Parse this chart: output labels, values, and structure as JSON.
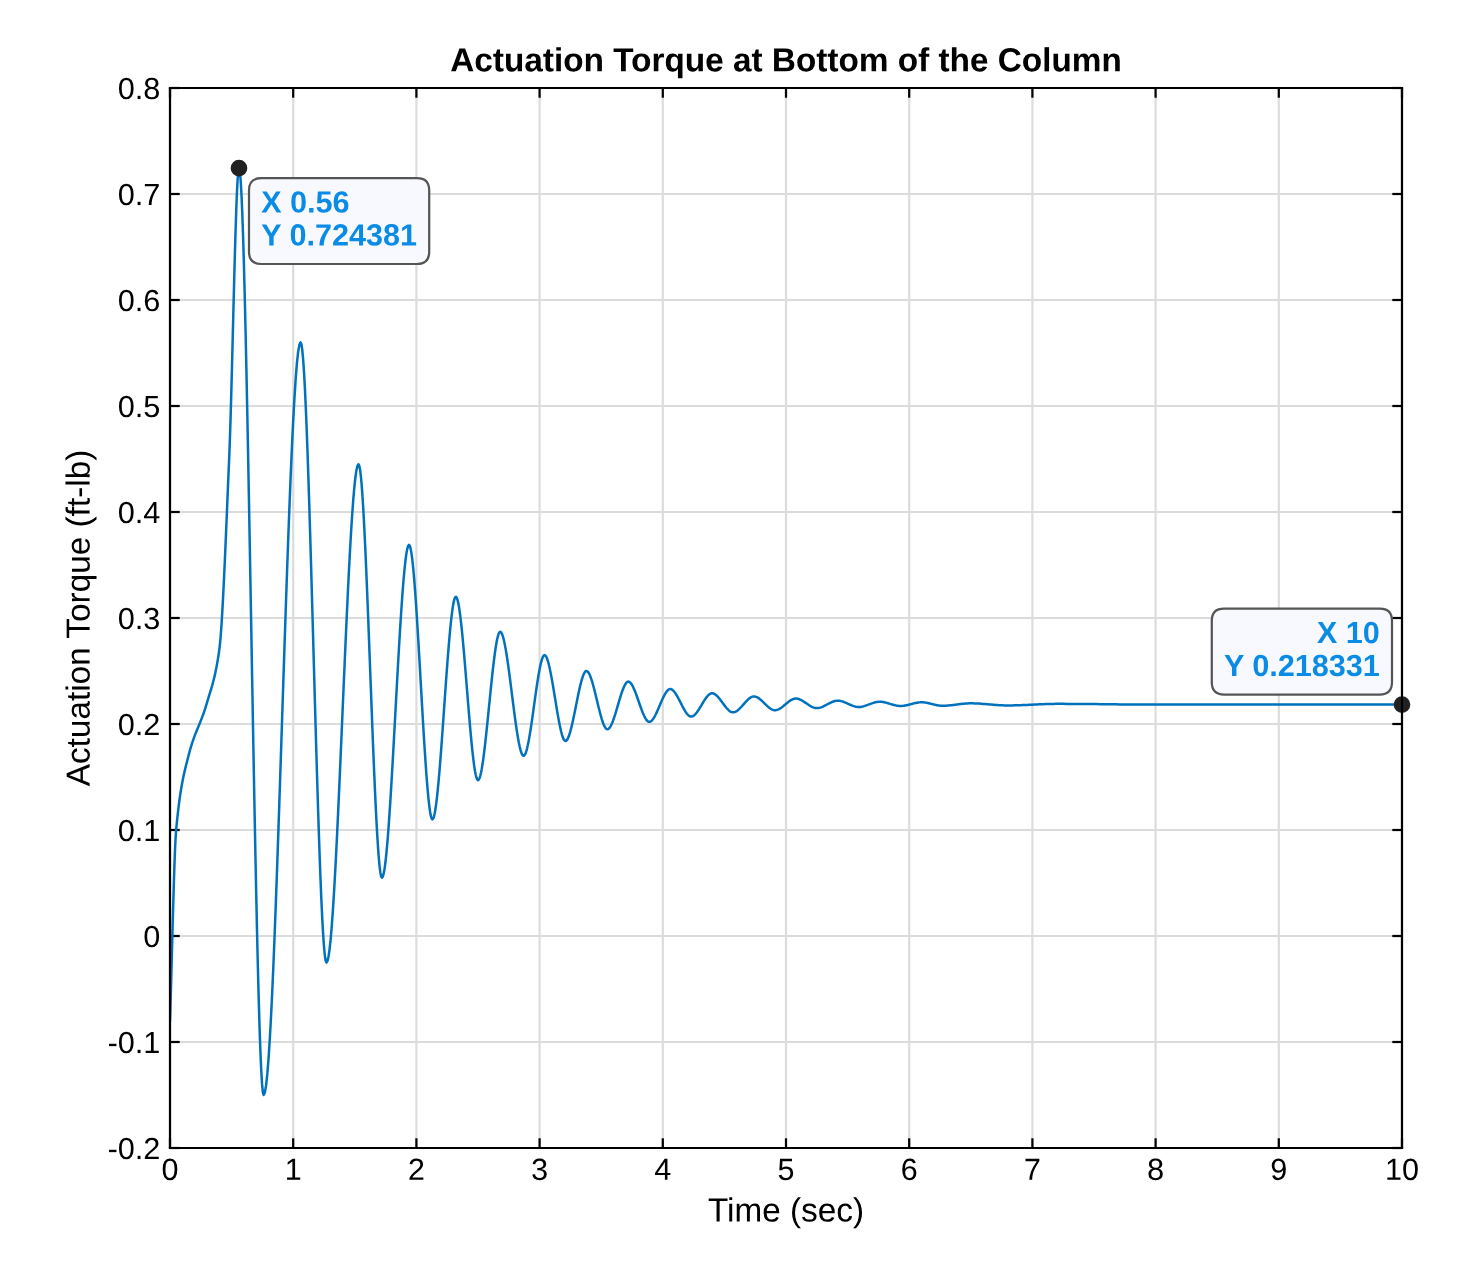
{
  "chart_data": {
    "type": "line",
    "title": "Actuation Torque at Bottom of the Column",
    "xlabel": "Time (sec)",
    "ylabel": "Actuation Torque (ft-lb)",
    "x": [
      0,
      0.05,
      0.15,
      0.3,
      0.4,
      0.48,
      0.56,
      0.76,
      1.06,
      1.27,
      1.53,
      1.72,
      1.94,
      2.13,
      2.32,
      2.5,
      2.68,
      2.87,
      3.04,
      3.21,
      3.38,
      3.55,
      3.72,
      3.89,
      4.06,
      4.23,
      4.4,
      4.57,
      4.74,
      4.91,
      5.08,
      5.25,
      5.42,
      5.59,
      5.76,
      5.93,
      6.1,
      6.27,
      6.5,
      6.8,
      7.2,
      8,
      10
    ],
    "series": [
      {
        "color": "#0072bd",
        "values": [
          -0.08,
          0.1,
          0.17,
          0.22,
          0.27,
          0.45,
          0.724381,
          -0.15,
          0.56,
          -0.025,
          0.445,
          0.055,
          0.369,
          0.11,
          0.32,
          0.147,
          0.287,
          0.17,
          0.265,
          0.184,
          0.25,
          0.195,
          0.24,
          0.202,
          0.233,
          0.207,
          0.229,
          0.211,
          0.226,
          0.213,
          0.224,
          0.215,
          0.222,
          0.216,
          0.221,
          0.217,
          0.2205,
          0.2172,
          0.2195,
          0.2175,
          0.219,
          0.2183,
          0.218331
        ]
      }
    ],
    "xlim": [
      0,
      10
    ],
    "ylim": [
      -0.2,
      0.8
    ],
    "xticks": [
      0,
      1,
      2,
      3,
      4,
      5,
      6,
      7,
      8,
      9,
      10
    ],
    "yticks": [
      -0.2,
      -0.1,
      0,
      0.1,
      0.2,
      0.3,
      0.4,
      0.5,
      0.6,
      0.7,
      0.8
    ],
    "grid": true,
    "marker": "none",
    "line_style": "solid",
    "annotations": [
      {
        "text": "X 0.56\nY 0.724381",
        "x": 0.56,
        "y": 0.724381
      },
      {
        "text": "X 10\nY 0.218331",
        "x": 10,
        "y": 0.218331
      }
    ]
  }
}
